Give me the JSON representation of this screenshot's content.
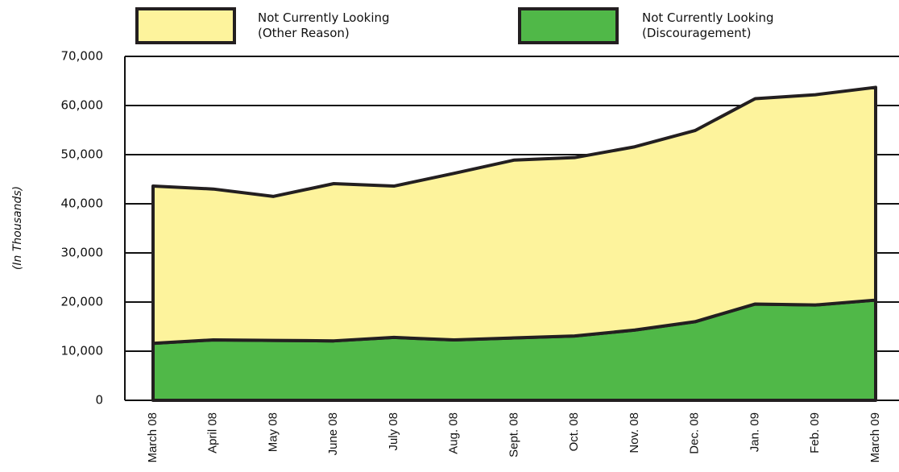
{
  "chart_data": {
    "type": "stacked_area",
    "ylabel": "(In Thousands)",
    "categories": [
      "March 08",
      "April 08",
      "May 08",
      "June 08",
      "July 08",
      "Aug. 08",
      "Sept. 08",
      "Oct. 08",
      "Nov. 08",
      "Dec. 08",
      "Jan. 09",
      "Feb. 09",
      "March 09"
    ],
    "series": [
      {
        "name": "Not Currently Looking (Discouragement)",
        "color": "#50b848",
        "values": [
          11600,
          12300,
          12200,
          12100,
          12800,
          12300,
          12700,
          13100,
          14300,
          16000,
          19600,
          19400,
          20400
        ]
      },
      {
        "name": "Not Currently Looking (Other Reason)",
        "color": "#fdf39c",
        "values": [
          32000,
          30700,
          29300,
          32000,
          30800,
          33900,
          36200,
          36300,
          37300,
          38900,
          41800,
          42800,
          43300
        ]
      }
    ],
    "ylim": [
      0,
      70000
    ],
    "yticks": [
      0,
      {
        "value": 10000,
        "label": "10,000"
      },
      {
        "value": 20000,
        "label": "20,000"
      },
      {
        "value": 30000,
        "label": "30,000"
      },
      {
        "value": 40000,
        "label": "40,000"
      },
      {
        "value": 50000,
        "label": "50,000"
      },
      {
        "value": 60000,
        "label": "60,000"
      },
      {
        "value": 70000,
        "label": "70,000"
      }
    ],
    "grid": true
  }
}
